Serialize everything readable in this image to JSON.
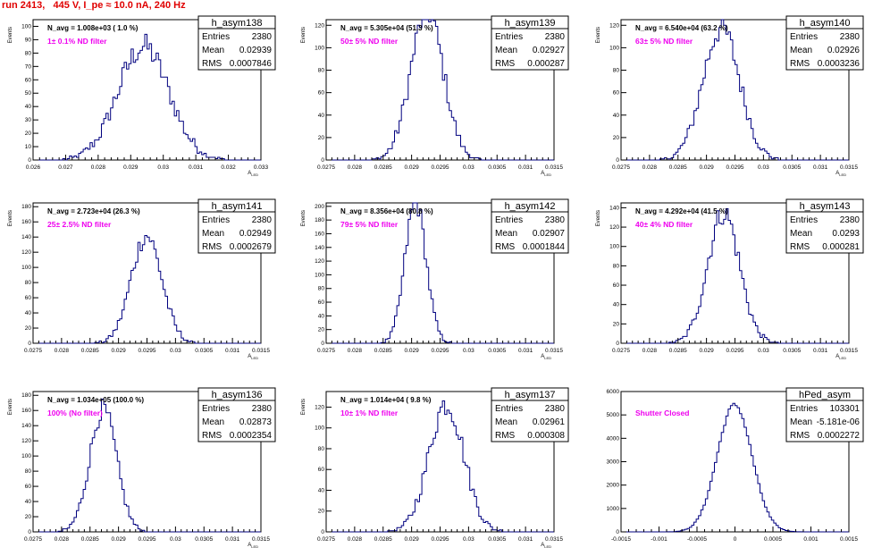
{
  "title": "run 2413,   445 V, I_pe ≈ 10.0 nA, 240 Hz",
  "colors": {
    "hist_line": "#00007f",
    "annotation": "#ee00ee",
    "title": "#e00000",
    "frame": "#000000"
  },
  "stats_labels": {
    "entries": "Entries",
    "mean": "Mean",
    "rms": "RMS"
  },
  "chart_data": [
    {
      "type": "histogram",
      "name": "h_asym138",
      "navg": "N_avg = 1.008e+03 ( 1.0 %)",
      "filter": "1± 0.1% ND filter",
      "ylabel": "Events",
      "xlabel": "A_LED",
      "xlim": [
        0.026,
        0.033
      ],
      "ylim": [
        0,
        105
      ],
      "xticks": [
        "0.026",
        "0.027",
        "0.028",
        "0.029",
        "0.03",
        "0.031",
        "0.032",
        "0.033"
      ],
      "yticks": [
        "0",
        "10",
        "20",
        "30",
        "40",
        "50",
        "60",
        "70",
        "80",
        "90",
        "100"
      ],
      "entries": "2380",
      "mean": "0.02939",
      "rms": "0.0007846",
      "mu": 0.02939,
      "sigma": 0.0007846,
      "n": 2380
    },
    {
      "type": "histogram",
      "name": "h_asym139",
      "navg": "N_avg = 5.305e+04 (51.3 %)",
      "filter": "50± 5% ND filter",
      "ylabel": "Events",
      "xlabel": "A_LED",
      "xlim": [
        0.0275,
        0.0315
      ],
      "ylim": [
        0,
        125
      ],
      "xticks": [
        "0.0275",
        "0.028",
        "0.0285",
        "0.029",
        "0.0295",
        "0.03",
        "0.0305",
        "0.031",
        "0.0315"
      ],
      "yticks": [
        "0",
        "20",
        "40",
        "60",
        "80",
        "100",
        "120"
      ],
      "entries": "2380",
      "mean": "0.02927",
      "rms": "0.000287",
      "mu": 0.02927,
      "sigma": 0.000287,
      "n": 2380
    },
    {
      "type": "histogram",
      "name": "h_asym140",
      "navg": "N_avg = 6.540e+04 (63.2 %)",
      "filter": "63± 5% ND filter",
      "ylabel": "Events",
      "xlabel": "A_LED",
      "xlim": [
        0.0275,
        0.0315
      ],
      "ylim": [
        0,
        125
      ],
      "xticks": [
        "0.0275",
        "0.028",
        "0.0285",
        "0.029",
        "0.0295",
        "0.03",
        "0.0305",
        "0.031",
        "0.0315"
      ],
      "yticks": [
        "0",
        "20",
        "40",
        "60",
        "80",
        "100",
        "120"
      ],
      "entries": "2380",
      "mean": "0.02926",
      "rms": "0.0003236",
      "mu": 0.02926,
      "sigma": 0.0003236,
      "n": 2380
    },
    {
      "type": "histogram",
      "name": "h_asym141",
      "navg": "N_avg = 2.723e+04 (26.3 %)",
      "filter": "25± 2.5% ND filter",
      "ylabel": "Events",
      "xlabel": "A_LED",
      "xlim": [
        0.0275,
        0.0315
      ],
      "ylim": [
        0,
        185
      ],
      "xticks": [
        "0.0275",
        "0.028",
        "0.0285",
        "0.029",
        "0.0295",
        "0.03",
        "0.0305",
        "0.031",
        "0.0315"
      ],
      "yticks": [
        "0",
        "20",
        "40",
        "60",
        "80",
        "100",
        "120",
        "140",
        "160",
        "180"
      ],
      "entries": "2380",
      "mean": "0.02949",
      "rms": "0.0002679",
      "mu": 0.02949,
      "sigma": 0.0002679,
      "n": 2380
    },
    {
      "type": "histogram",
      "name": "h_asym142",
      "navg": "N_avg = 8.356e+04 (80.8 %)",
      "filter": "79± 5% ND filter",
      "ylabel": "Events",
      "xlabel": "A_LED",
      "xlim": [
        0.0275,
        0.0315
      ],
      "ylim": [
        0,
        205
      ],
      "xticks": [
        "0.0275",
        "0.028",
        "0.0285",
        "0.029",
        "0.0295",
        "0.03",
        "0.0305",
        "0.031",
        "0.0315"
      ],
      "yticks": [
        "0",
        "20",
        "40",
        "60",
        "80",
        "100",
        "120",
        "140",
        "160",
        "180",
        "200"
      ],
      "entries": "2380",
      "mean": "0.02907",
      "rms": "0.0001844",
      "mu": 0.02907,
      "sigma": 0.0001844,
      "n": 2380
    },
    {
      "type": "histogram",
      "name": "h_asym143",
      "navg": "N_avg = 4.292e+04 (41.5 %)",
      "filter": "40± 4% ND filter",
      "ylabel": "Events",
      "xlabel": "A_LED",
      "xlim": [
        0.0275,
        0.0315
      ],
      "ylim": [
        0,
        145
      ],
      "xticks": [
        "0.0275",
        "0.028",
        "0.0285",
        "0.029",
        "0.0295",
        "0.03",
        "0.0305",
        "0.031",
        "0.0315"
      ],
      "yticks": [
        "0",
        "20",
        "40",
        "60",
        "80",
        "100",
        "120",
        "140"
      ],
      "entries": "2380",
      "mean": "0.0293",
      "rms": "0.000281",
      "mu": 0.0293,
      "sigma": 0.000281,
      "n": 2380
    },
    {
      "type": "histogram",
      "name": "h_asym136",
      "navg": "N_avg = 1.034e+05 (100.0 %)",
      "filter": "100% (No filter)",
      "ylabel": "Events",
      "xlabel": "A_LED",
      "xlim": [
        0.0275,
        0.0315
      ],
      "ylim": [
        0,
        185
      ],
      "xticks": [
        "0.0275",
        "0.028",
        "0.0285",
        "0.029",
        "0.0295",
        "0.03",
        "0.0305",
        "0.031",
        "0.0315"
      ],
      "yticks": [
        "0",
        "20",
        "40",
        "60",
        "80",
        "100",
        "120",
        "140",
        "160",
        "180"
      ],
      "entries": "2380",
      "mean": "0.02873",
      "rms": "0.0002354",
      "mu": 0.02873,
      "sigma": 0.0002354,
      "n": 2380
    },
    {
      "type": "histogram",
      "name": "h_asym137",
      "navg": "N_avg = 1.014e+04 ( 9.8 %)",
      "filter": "10± 1% ND filter",
      "ylabel": "Events",
      "xlabel": "A_LED",
      "xlim": [
        0.0275,
        0.0315
      ],
      "ylim": [
        0,
        135
      ],
      "xticks": [
        "0.0275",
        "0.028",
        "0.0285",
        "0.029",
        "0.0295",
        "0.03",
        "0.0305",
        "0.031",
        "0.0315"
      ],
      "yticks": [
        "0",
        "20",
        "40",
        "60",
        "80",
        "100",
        "120"
      ],
      "entries": "2380",
      "mean": "0.02961",
      "rms": "0.000308",
      "mu": 0.02961,
      "sigma": 0.000308,
      "n": 2380
    },
    {
      "type": "histogram",
      "name": "hPed_asym",
      "navg": "",
      "filter": "Shutter Closed",
      "ylabel": "",
      "xlabel": "",
      "xlim": [
        -0.0015,
        0.0015
      ],
      "ylim": [
        0,
        6000
      ],
      "xticks": [
        "-0.0015",
        "-0.001",
        "-0.0005",
        "0",
        "0.0005",
        "0.001",
        "0.0015"
      ],
      "yticks": [
        "0",
        "1000",
        "2000",
        "3000",
        "4000",
        "5000",
        "6000"
      ],
      "entries": "103301",
      "mean": "-5.181e-06",
      "rms": "0.0002272",
      "mu": -5.181e-06,
      "sigma": 0.0002272,
      "n": 103301
    }
  ]
}
